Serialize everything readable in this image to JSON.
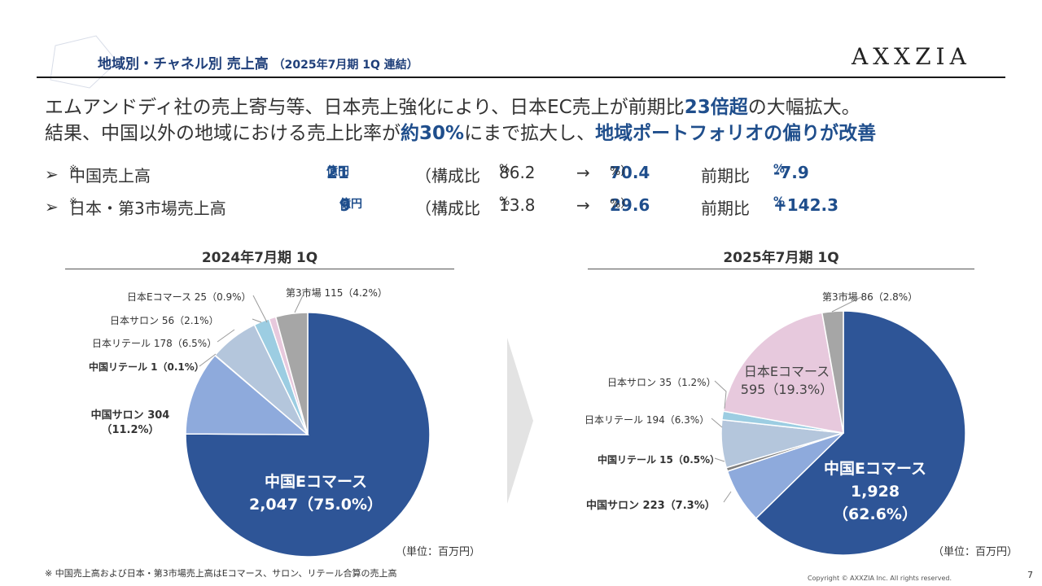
{
  "header": {
    "title": "地域別・チャネル別 売上高",
    "title_sub": "（2025年7月期 1Q 連結）",
    "logo_text": "AXXZIA"
  },
  "headline": {
    "line1_pre": "エムアンドディ社の売上寄与等、日本売上強化により、日本EC売上が前期比",
    "line1_strong": "23倍超",
    "line1_post": "の大幅拡大。",
    "line2_pre": "結果、中国以外の地域における売上比率が",
    "line2_strong1": "約30%",
    "line2_mid": "にまで拡大し、",
    "line2_strong2": "地域ポートフォリオの偏りが改善"
  },
  "summary": [
    {
      "bullet": "➢",
      "label": "中国売上高",
      "mark": "※",
      "amount": "21",
      "unit": "億円",
      "ratio_label": "（構成比",
      "ratio_from": "86.2",
      "pct": "%",
      "arrow": "→",
      "ratio_to": "70.4",
      "ratio_to_pct": "%）",
      "yoy_label": "前期比",
      "yoy": "-7.9",
      "yoy_pct": "%"
    },
    {
      "bullet": "➢",
      "label": "日本・第3市場売上高",
      "mark": "※",
      "amount": "9",
      "unit": "億円",
      "ratio_label": "（構成比",
      "ratio_from": "13.8",
      "pct": "%",
      "arrow": "→",
      "ratio_to": "29.6",
      "ratio_to_pct": "%）",
      "yoy_label": "前期比",
      "yoy": "+142.3",
      "yoy_pct": "%"
    }
  ],
  "colors": {
    "china_ec": "#2e5597",
    "china_salon": "#8eaadc",
    "china_retail": "#7f7f7f",
    "japan_retail": "#b4c6dc",
    "japan_salon": "#9ccde2",
    "japan_ec": "#e7c9dd",
    "third_market": "#a6a6a6",
    "accent": "#1f4e8c"
  },
  "chart_data": [
    {
      "type": "pie",
      "title": "2024年7月期 1Q",
      "unit_label": "（単位：百万円）",
      "slices": [
        {
          "name": "中国Eコマース",
          "value": 2047,
          "value_text": "2,047",
          "pct": "75.0%",
          "label": "中国Eコマース 2,047（75.0%）",
          "color_key": "china_ec"
        },
        {
          "name": "中国サロン",
          "value": 304,
          "value_text": "304",
          "pct": "11.2%",
          "label": "中国サロン 304（11.2%）",
          "color_key": "china_salon"
        },
        {
          "name": "中国リテール",
          "value": 1,
          "value_text": "1",
          "pct": "0.1%",
          "label": "中国リテール 1（0.1%）",
          "color_key": "china_retail"
        },
        {
          "name": "日本リテール",
          "value": 178,
          "value_text": "178",
          "pct": "6.5%",
          "label": "日本リテール 178（6.5%）",
          "color_key": "japan_retail"
        },
        {
          "name": "日本サロン",
          "value": 56,
          "value_text": "56",
          "pct": "2.1%",
          "label": "日本サロン 56（2.1%）",
          "color_key": "japan_salon"
        },
        {
          "name": "日本Eコマース",
          "value": 25,
          "value_text": "25",
          "pct": "0.9%",
          "label": "日本Eコマース 25（0.9%）",
          "color_key": "japan_ec"
        },
        {
          "name": "第3市場",
          "value": 115,
          "value_text": "115",
          "pct": "4.2%",
          "label": "第3市場 115（4.2%）",
          "color_key": "third_market"
        }
      ]
    },
    {
      "type": "pie",
      "title": "2025年7月期 1Q",
      "unit_label": "（単位：百万円）",
      "slices": [
        {
          "name": "中国Eコマース",
          "value": 1928,
          "value_text": "1,928",
          "pct": "62.6%",
          "label": "中国Eコマース 1,928（62.6%）",
          "color_key": "china_ec"
        },
        {
          "name": "中国サロン",
          "value": 223,
          "value_text": "223",
          "pct": "7.3%",
          "label": "中国サロン 223（7.3%）",
          "color_key": "china_salon"
        },
        {
          "name": "中国リテール",
          "value": 15,
          "value_text": "15",
          "pct": "0.5%",
          "label": "中国リテール 15（0.5%）",
          "color_key": "china_retail"
        },
        {
          "name": "日本リテール",
          "value": 194,
          "value_text": "194",
          "pct": "6.3%",
          "label": "日本リテール 194（6.3%）",
          "color_key": "japan_retail"
        },
        {
          "name": "日本サロン",
          "value": 35,
          "value_text": "35",
          "pct": "1.2%",
          "label": "日本サロン 35（1.2%）",
          "color_key": "japan_salon"
        },
        {
          "name": "日本Eコマース",
          "value": 595,
          "value_text": "595",
          "pct": "19.3%",
          "label": "日本Eコマース 595（19.3%）",
          "color_key": "japan_ec"
        },
        {
          "name": "第3市場",
          "value": 86,
          "value_text": "86",
          "pct": "2.8%",
          "label": "第3市場 86（2.8%）",
          "color_key": "third_market"
        }
      ]
    }
  ],
  "footer": {
    "footnote": "※ 中国売上高および日本・第3市場売上高はEコマース、サロン、リテール合算の売上高",
    "copyright": "Copyright © AXXZIA Inc. All rights reserved.",
    "page_number": "7"
  }
}
